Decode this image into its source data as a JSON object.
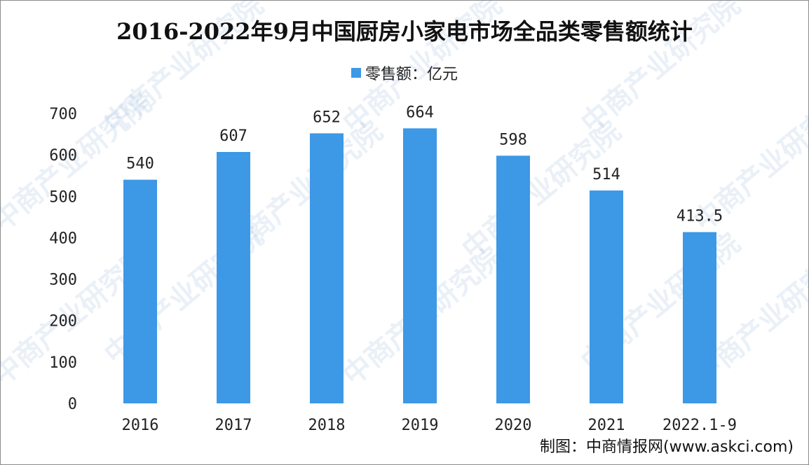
{
  "chart_data": {
    "type": "bar",
    "title": "2016-2022年9月中国厨房小家电市场全品类零售额统计",
    "categories": [
      "2016",
      "2017",
      "2018",
      "2019",
      "2020",
      "2021",
      "2022.1-9"
    ],
    "series": [
      {
        "name": "零售额：亿元",
        "values": [
          540,
          607,
          652,
          664,
          598,
          514,
          413.5
        ],
        "labels": [
          "540",
          "607",
          "652",
          "664",
          "598",
          "514",
          "413.5"
        ]
      }
    ],
    "xlabel": "",
    "ylabel": "",
    "ylim": [
      0,
      700
    ],
    "yticks": [
      "0",
      "100",
      "200",
      "300",
      "400",
      "500",
      "600",
      "700"
    ],
    "grid": false,
    "legend": "top-center",
    "bar_color": "#3d98e6"
  },
  "source_text": "制图：中商情报网(www.askci.com)",
  "watermark_text": "中商产业研究院"
}
